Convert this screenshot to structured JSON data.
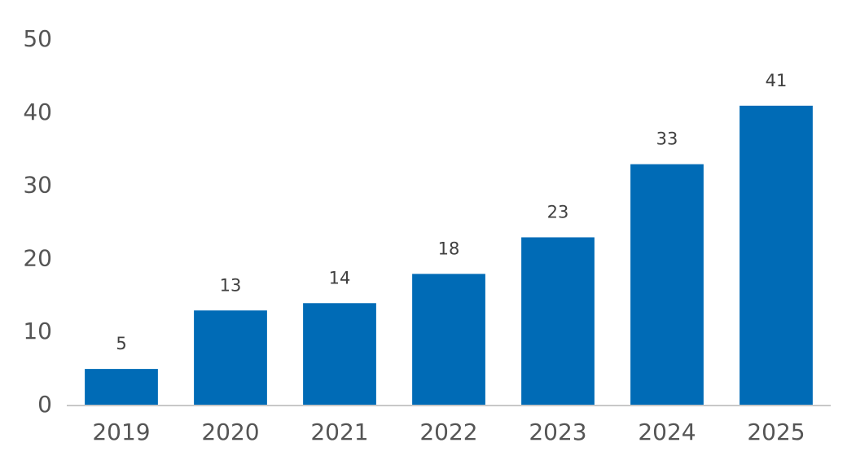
{
  "chart_data": {
    "type": "bar",
    "categories": [
      "2019",
      "2020",
      "2021",
      "2022",
      "2023",
      "2024",
      "2025"
    ],
    "values": [
      5,
      13,
      14,
      18,
      23,
      33,
      41
    ],
    "color": "#006bb6",
    "ylim": [
      0,
      50
    ],
    "yticks": [
      0,
      10,
      20,
      30,
      40,
      50
    ],
    "grid": false
  }
}
